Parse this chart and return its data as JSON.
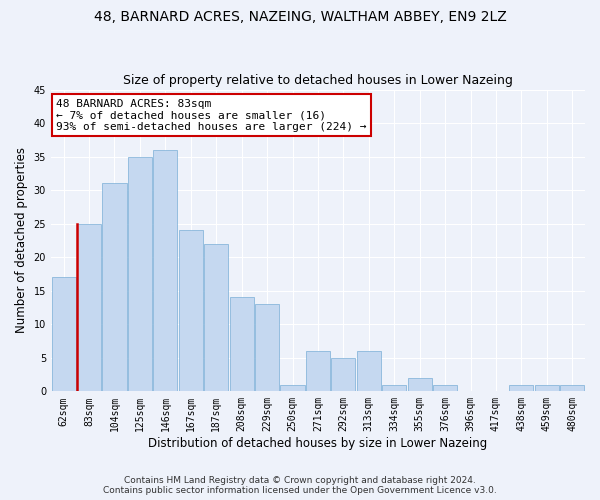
{
  "title": "48, BARNARD ACRES, NAZEING, WALTHAM ABBEY, EN9 2LZ",
  "subtitle": "Size of property relative to detached houses in Lower Nazeing",
  "xlabel": "Distribution of detached houses by size in Lower Nazeing",
  "ylabel": "Number of detached properties",
  "categories": [
    "62sqm",
    "83sqm",
    "104sqm",
    "125sqm",
    "146sqm",
    "167sqm",
    "187sqm",
    "208sqm",
    "229sqm",
    "250sqm",
    "271sqm",
    "292sqm",
    "313sqm",
    "334sqm",
    "355sqm",
    "376sqm",
    "396sqm",
    "417sqm",
    "438sqm",
    "459sqm",
    "480sqm"
  ],
  "values": [
    17,
    25,
    31,
    35,
    36,
    24,
    22,
    14,
    13,
    1,
    6,
    5,
    6,
    1,
    2,
    1,
    0,
    0,
    1,
    1,
    1
  ],
  "bar_color": "#c5d8f0",
  "bar_edge_color": "#7aaed6",
  "highlight_bar_index": 1,
  "highlight_edge_color": "#cc0000",
  "annotation_text": "48 BARNARD ACRES: 83sqm\n← 7% of detached houses are smaller (16)\n93% of semi-detached houses are larger (224) →",
  "annotation_box_color": "#ffffff",
  "annotation_box_edge_color": "#cc0000",
  "ylim": [
    0,
    45
  ],
  "yticks": [
    0,
    5,
    10,
    15,
    20,
    25,
    30,
    35,
    40,
    45
  ],
  "footer_line1": "Contains HM Land Registry data © Crown copyright and database right 2024.",
  "footer_line2": "Contains public sector information licensed under the Open Government Licence v3.0.",
  "background_color": "#eef2fa",
  "grid_color": "#ffffff",
  "title_fontsize": 10,
  "subtitle_fontsize": 9,
  "xlabel_fontsize": 8.5,
  "ylabel_fontsize": 8.5,
  "tick_fontsize": 7,
  "annotation_fontsize": 8,
  "footer_fontsize": 6.5
}
